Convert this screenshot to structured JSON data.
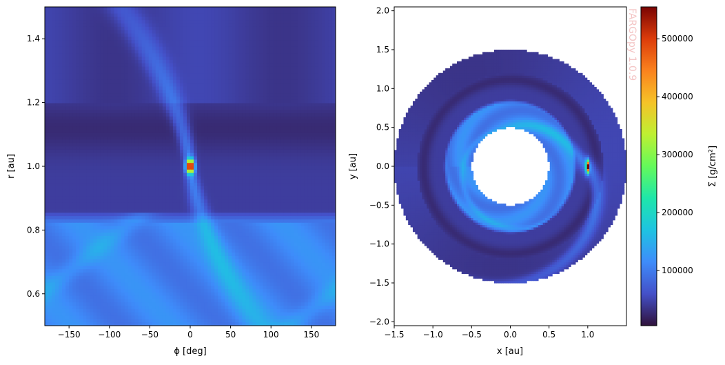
{
  "watermark": "FARGOpy 1.0.9",
  "colors": {
    "cmap": "turbo",
    "panel_bg": "#ffffff",
    "axis": "#000000"
  },
  "chart_data": [
    {
      "type": "heatmap",
      "name": "sigma-phi-r",
      "xlabel": "ϕ [deg]",
      "ylabel": "r [au]",
      "xlim": [
        -180,
        180
      ],
      "ylim": [
        0.5,
        1.5
      ],
      "xticks": [
        -150,
        -100,
        -50,
        0,
        50,
        100,
        150
      ],
      "xtick_labels": [
        "−150",
        "−100",
        "−50",
        "0",
        "50",
        "100",
        "150"
      ],
      "yticks": [
        0.6,
        0.8,
        1.0,
        1.2,
        1.4
      ],
      "ytick_labels": [
        "0.6",
        "0.8",
        "1.0",
        "1.2",
        "1.4"
      ],
      "planet": {
        "phi": 0,
        "r": 1.0
      },
      "grid": false
    },
    {
      "type": "heatmap",
      "name": "sigma-xy",
      "xlabel": "x [au]",
      "ylabel": "y [au]",
      "xlim": [
        -1.5,
        1.5
      ],
      "ylim": [
        -2.05,
        2.05
      ],
      "xticks": [
        -1.5,
        -1.0,
        -0.5,
        0.0,
        0.5,
        1.0
      ],
      "xtick_labels": [
        "−1.5",
        "−1.0",
        "−0.5",
        "0.0",
        "0.5",
        "1.0"
      ],
      "yticks": [
        -2.0,
        -1.5,
        -1.0,
        -0.5,
        0.0,
        0.5,
        1.0,
        1.5,
        2.0
      ],
      "ytick_labels": [
        "−2.0",
        "−1.5",
        "−1.0",
        "−0.5",
        "0.0",
        "0.5",
        "1.0",
        "1.5",
        "2.0"
      ],
      "r_inner": 0.5,
      "r_outer": 1.5,
      "planet": {
        "x": 1.0,
        "y": 0.0
      },
      "grid": false
    },
    {
      "type": "colorbar",
      "label": "Σ [g/cm²]",
      "vmin": 5000,
      "vmax": 555000,
      "ticks": [
        100000,
        200000,
        300000,
        400000,
        500000
      ],
      "tick_labels": [
        "100000",
        "200000",
        "300000",
        "400000",
        "500000"
      ]
    }
  ]
}
